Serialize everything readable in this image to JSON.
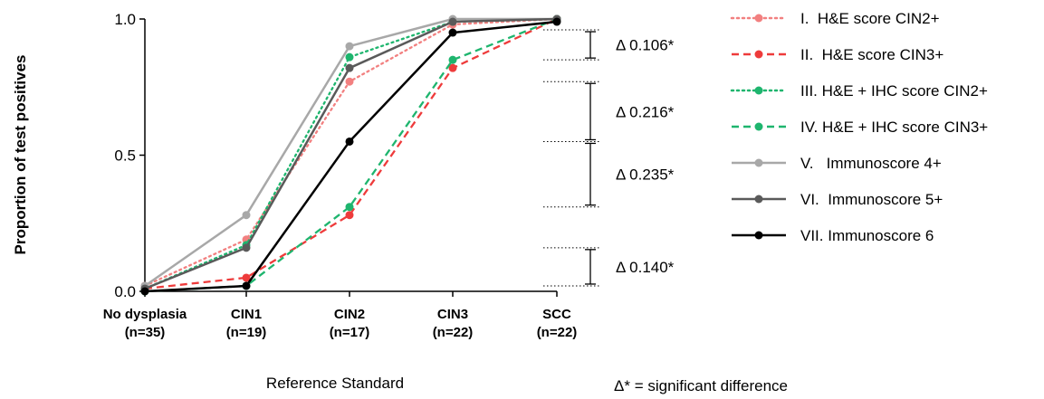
{
  "chart_data": {
    "type": "line",
    "title": "",
    "xlabel": "Reference Standard",
    "ylabel": "Proportion of test positives",
    "ylim": [
      0,
      1
    ],
    "yticks": [
      "0.0",
      "0.5",
      "1.0"
    ],
    "categories": [
      {
        "name": "No dysplasia",
        "n": "(n=35)"
      },
      {
        "name": "CIN1",
        "n": "(n=19)"
      },
      {
        "name": "CIN2",
        "n": "(n=17)"
      },
      {
        "name": "CIN3",
        "n": "(n=22)"
      },
      {
        "name": "SCC",
        "n": "(n=22)"
      }
    ],
    "series": [
      {
        "name": "I.  H&E score CIN2+",
        "color": "#F28080",
        "dash": "dotted",
        "values": [
          0.02,
          0.19,
          0.77,
          0.98,
          1.0
        ]
      },
      {
        "name": "II.  H&E score CIN3+",
        "color": "#EE3B3B",
        "dash": "dashed",
        "values": [
          0.01,
          0.05,
          0.28,
          0.82,
          1.0
        ]
      },
      {
        "name": "III. H&E + IHC score CIN2+",
        "color": "#1EB56E",
        "dash": "dotted",
        "values": [
          0.01,
          0.17,
          0.86,
          0.99,
          1.0
        ]
      },
      {
        "name": "IV. H&E + IHC score CIN3+",
        "color": "#1EB56E",
        "dash": "dashed",
        "values": [
          0.0,
          0.02,
          0.31,
          0.85,
          1.0
        ]
      },
      {
        "name": "V.   Immunoscore 4+",
        "color": "#A8A8A8",
        "dash": "solid",
        "values": [
          0.02,
          0.28,
          0.9,
          1.0,
          1.0
        ]
      },
      {
        "name": "VI.  Immunoscore 5+",
        "color": "#5A5A5A",
        "dash": "solid",
        "values": [
          0.01,
          0.16,
          0.82,
          0.99,
          1.0
        ]
      },
      {
        "name": "VII. Immunoscore 6",
        "color": "#000000",
        "dash": "solid",
        "values": [
          0.0,
          0.02,
          0.55,
          0.95,
          0.99
        ]
      }
    ],
    "annotations": [
      {
        "label": "Δ 0.106*",
        "upper": 0.96,
        "lower": 0.85
      },
      {
        "label": "Δ 0.216*",
        "upper": 0.77,
        "lower": 0.55
      },
      {
        "label": "Δ 0.235*",
        "upper": 0.55,
        "lower": 0.31
      },
      {
        "label": "Δ 0.140*",
        "upper": 0.16,
        "lower": 0.02
      }
    ],
    "footnote": "Δ* = significant difference",
    "legend_position": "right",
    "grid": false
  }
}
